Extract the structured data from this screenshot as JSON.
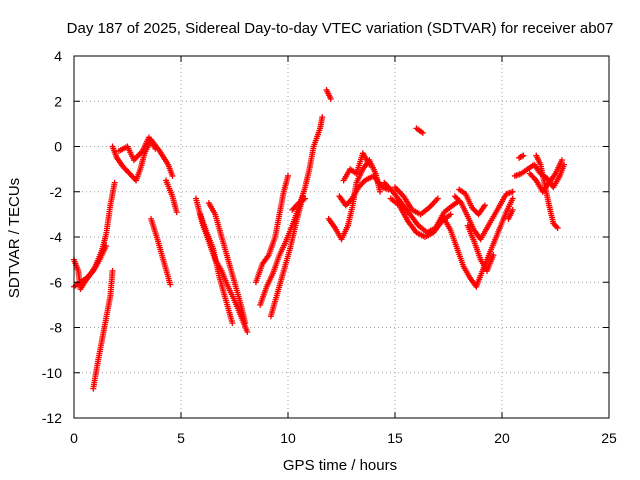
{
  "chart_data": {
    "type": "scatter",
    "title": "Day 187 of 2025, Sidereal Day-to-day VTEC variation (SDTVAR) for receiver ab07",
    "xlabel": "GPS time / hours",
    "ylabel": "SDTVAR / TECUs",
    "xlim": [
      0,
      25
    ],
    "ylim": [
      -12,
      4
    ],
    "xticks": [
      0,
      5,
      10,
      15,
      20,
      25
    ],
    "yticks": [
      -12,
      -10,
      -8,
      -6,
      -4,
      -2,
      0,
      2,
      4
    ],
    "grid": true,
    "marker": "+",
    "color": "#ff0000",
    "series": [
      {
        "segments": [
          [
            [
              0.0,
              -5.0
            ],
            [
              0.2,
              -5.5
            ],
            [
              0.3,
              -6.3
            ],
            [
              0.5,
              -6.0
            ],
            [
              0.8,
              -5.6
            ],
            [
              1.0,
              -5.3
            ],
            [
              1.3,
              -4.6
            ],
            [
              1.5,
              -3.9
            ],
            [
              1.7,
              -2.6
            ],
            [
              1.9,
              -1.6
            ]
          ],
          [
            [
              0.0,
              -6.2
            ],
            [
              0.3,
              -6.0
            ],
            [
              0.6,
              -5.8
            ],
            [
              0.9,
              -5.5
            ],
            [
              1.2,
              -5.0
            ],
            [
              1.5,
              -4.4
            ]
          ],
          [
            [
              0.9,
              -10.7
            ],
            [
              1.1,
              -9.6
            ],
            [
              1.3,
              -8.6
            ],
            [
              1.5,
              -7.6
            ],
            [
              1.7,
              -6.6
            ],
            [
              1.8,
              -5.5
            ]
          ],
          [
            [
              1.8,
              0.0
            ],
            [
              2.0,
              -0.5
            ],
            [
              2.3,
              -0.9
            ],
            [
              2.6,
              -1.2
            ],
            [
              2.9,
              -1.5
            ],
            [
              3.1,
              -1.0
            ],
            [
              3.3,
              -0.3
            ],
            [
              3.6,
              0.3
            ],
            [
              4.0,
              -0.2
            ],
            [
              4.4,
              -0.8
            ],
            [
              4.6,
              -1.3
            ]
          ],
          [
            [
              2.1,
              -0.2
            ],
            [
              2.5,
              0.0
            ],
            [
              2.8,
              -0.6
            ],
            [
              3.2,
              -0.2
            ],
            [
              3.5,
              0.4
            ],
            [
              3.8,
              -0.1
            ]
          ],
          [
            [
              3.6,
              -3.2
            ],
            [
              3.9,
              -4.1
            ],
            [
              4.2,
              -5.1
            ],
            [
              4.5,
              -6.1
            ]
          ],
          [
            [
              4.3,
              -1.5
            ],
            [
              4.6,
              -2.2
            ],
            [
              4.8,
              -2.9
            ]
          ],
          [
            [
              5.7,
              -2.3
            ],
            [
              6.0,
              -3.4
            ],
            [
              6.3,
              -4.2
            ],
            [
              6.6,
              -5.0
            ],
            [
              6.9,
              -5.5
            ],
            [
              7.2,
              -6.2
            ],
            [
              7.5,
              -6.8
            ],
            [
              7.8,
              -7.5
            ],
            [
              8.1,
              -8.2
            ]
          ],
          [
            [
              6.3,
              -2.5
            ],
            [
              6.6,
              -3.0
            ],
            [
              6.9,
              -4.0
            ],
            [
              7.2,
              -5.0
            ],
            [
              7.5,
              -6.0
            ],
            [
              7.8,
              -7.0
            ],
            [
              8.0,
              -7.8
            ]
          ],
          [
            [
              5.9,
              -3.0
            ],
            [
              6.2,
              -3.8
            ],
            [
              6.5,
              -4.5
            ],
            [
              6.8,
              -5.8
            ],
            [
              7.1,
              -6.8
            ],
            [
              7.4,
              -7.8
            ]
          ],
          [
            [
              8.5,
              -6.0
            ],
            [
              8.8,
              -5.2
            ],
            [
              9.1,
              -4.8
            ],
            [
              9.4,
              -4.0
            ],
            [
              9.6,
              -3.0
            ],
            [
              9.8,
              -2.0
            ],
            [
              10.0,
              -1.3
            ]
          ],
          [
            [
              8.7,
              -7.0
            ],
            [
              9.0,
              -6.2
            ],
            [
              9.3,
              -5.6
            ],
            [
              9.6,
              -4.8
            ],
            [
              9.9,
              -4.2
            ],
            [
              10.2,
              -3.5
            ],
            [
              10.5,
              -2.7
            ],
            [
              10.8,
              -1.8
            ],
            [
              11.0,
              -1.0
            ],
            [
              11.2,
              0.0
            ],
            [
              11.5,
              0.8
            ],
            [
              11.6,
              1.3
            ]
          ],
          [
            [
              9.2,
              -7.5
            ],
            [
              9.5,
              -6.5
            ],
            [
              9.8,
              -5.5
            ],
            [
              10.1,
              -4.5
            ],
            [
              10.4,
              -3.3
            ],
            [
              10.7,
              -2.2
            ]
          ],
          [
            [
              10.2,
              -2.8
            ],
            [
              10.5,
              -2.5
            ],
            [
              10.8,
              -2.3
            ]
          ],
          [
            [
              11.8,
              2.5
            ],
            [
              12.0,
              2.1
            ]
          ],
          [
            [
              11.9,
              -3.2
            ],
            [
              12.2,
              -3.6
            ],
            [
              12.5,
              -4.1
            ],
            [
              12.8,
              -3.5
            ],
            [
              13.0,
              -2.7
            ],
            [
              13.2,
              -1.6
            ],
            [
              13.5,
              -1.0
            ],
            [
              13.8,
              -0.6
            ],
            [
              14.1,
              -1.2
            ],
            [
              14.3,
              -2.0
            ]
          ],
          [
            [
              12.4,
              -2.2
            ],
            [
              12.7,
              -2.6
            ],
            [
              13.0,
              -2.3
            ],
            [
              13.3,
              -1.8
            ],
            [
              13.6,
              -1.5
            ],
            [
              14.0,
              -1.3
            ],
            [
              14.4,
              -1.8
            ],
            [
              14.7,
              -1.9
            ]
          ],
          [
            [
              12.6,
              -1.5
            ],
            [
              12.9,
              -1.0
            ],
            [
              13.2,
              -1.2
            ],
            [
              13.5,
              -0.3
            ],
            [
              13.8,
              -0.8
            ]
          ],
          [
            [
              14.5,
              -1.6
            ],
            [
              14.9,
              -2.0
            ],
            [
              15.3,
              -2.5
            ],
            [
              15.7,
              -3.0
            ],
            [
              16.1,
              -3.5
            ],
            [
              16.5,
              -3.8
            ],
            [
              16.9,
              -3.6
            ],
            [
              17.3,
              -2.9
            ],
            [
              17.7,
              -2.6
            ],
            [
              18.0,
              -2.4
            ]
          ],
          [
            [
              14.8,
              -2.3
            ],
            [
              15.2,
              -2.6
            ],
            [
              15.6,
              -3.3
            ],
            [
              16.0,
              -3.8
            ],
            [
              16.4,
              -4.0
            ],
            [
              16.8,
              -3.8
            ],
            [
              17.2,
              -3.3
            ],
            [
              17.6,
              -3.0
            ]
          ],
          [
            [
              15.0,
              -1.8
            ],
            [
              15.4,
              -2.2
            ],
            [
              15.8,
              -2.8
            ],
            [
              16.2,
              -3.0
            ],
            [
              16.6,
              -2.7
            ],
            [
              17.0,
              -2.3
            ]
          ],
          [
            [
              16.0,
              0.8
            ],
            [
              16.3,
              0.6
            ]
          ],
          [
            [
              17.3,
              -3.2
            ],
            [
              17.6,
              -3.7
            ],
            [
              17.9,
              -4.5
            ],
            [
              18.2,
              -5.3
            ],
            [
              18.5,
              -5.8
            ],
            [
              18.8,
              -6.2
            ],
            [
              19.0,
              -5.7
            ],
            [
              19.3,
              -5.0
            ],
            [
              19.6,
              -4.3
            ],
            [
              19.9,
              -3.6
            ],
            [
              20.2,
              -2.9
            ],
            [
              20.5,
              -2.3
            ]
          ],
          [
            [
              17.8,
              -2.2
            ],
            [
              18.1,
              -2.5
            ],
            [
              18.4,
              -3.1
            ],
            [
              18.7,
              -3.7
            ],
            [
              19.0,
              -4.1
            ],
            [
              19.3,
              -3.6
            ],
            [
              19.6,
              -3.1
            ],
            [
              19.9,
              -2.6
            ],
            [
              20.2,
              -2.1
            ],
            [
              20.5,
              -2.0
            ]
          ],
          [
            [
              18.0,
              -1.9
            ],
            [
              18.3,
              -2.1
            ],
            [
              18.6,
              -2.7
            ],
            [
              18.9,
              -3.0
            ],
            [
              19.2,
              -2.6
            ]
          ],
          [
            [
              18.4,
              -3.5
            ],
            [
              18.7,
              -4.2
            ],
            [
              19.0,
              -5.0
            ],
            [
              19.3,
              -5.5
            ],
            [
              19.6,
              -4.8
            ]
          ],
          [
            [
              20.3,
              -3.2
            ],
            [
              20.5,
              -2.8
            ]
          ],
          [
            [
              20.6,
              -1.3
            ],
            [
              20.9,
              -1.2
            ],
            [
              21.2,
              -1.0
            ],
            [
              21.5,
              -0.8
            ],
            [
              21.8,
              -1.2
            ],
            [
              22.1,
              -1.4
            ],
            [
              22.4,
              -1.8
            ],
            [
              22.7,
              -1.3
            ],
            [
              22.9,
              -0.8
            ]
          ],
          [
            [
              20.8,
              -0.5
            ],
            [
              21.0,
              -0.4
            ]
          ],
          [
            [
              21.6,
              -0.4
            ],
            [
              21.8,
              -0.8
            ],
            [
              22.0,
              -1.7
            ],
            [
              22.2,
              -2.6
            ],
            [
              22.4,
              -3.4
            ],
            [
              22.6,
              -3.6
            ]
          ],
          [
            [
              21.3,
              -1.2
            ],
            [
              21.6,
              -1.5
            ],
            [
              21.9,
              -2.0
            ],
            [
              22.2,
              -1.6
            ],
            [
              22.5,
              -1.2
            ],
            [
              22.8,
              -0.6
            ]
          ]
        ]
      }
    ]
  }
}
